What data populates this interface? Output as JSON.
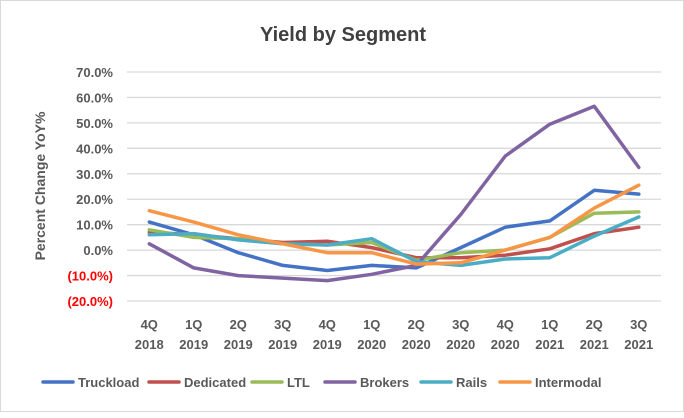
{
  "chart_data": {
    "type": "line",
    "title": "Yield by Segment",
    "xlabel": "",
    "ylabel": "Percent Change YoY%",
    "ylim": [
      -20,
      70
    ],
    "yticks": [
      70,
      60,
      50,
      40,
      30,
      20,
      10,
      0,
      -10,
      -20
    ],
    "ytick_labels": [
      "70.0%",
      "60.0%",
      "50.0%",
      "40.0%",
      "30.0%",
      "20.0%",
      "10.0%",
      "0.0%",
      "(10.0%)",
      "(20.0%)"
    ],
    "negative_label_color": "#ff0000",
    "grid": true,
    "legend_position": "bottom",
    "categories": [
      [
        "4Q",
        "2018"
      ],
      [
        "1Q",
        "2019"
      ],
      [
        "2Q",
        "2019"
      ],
      [
        "3Q",
        "2019"
      ],
      [
        "4Q",
        "2019"
      ],
      [
        "1Q",
        "2020"
      ],
      [
        "2Q",
        "2020"
      ],
      [
        "3Q",
        "2020"
      ],
      [
        "4Q",
        "2020"
      ],
      [
        "1Q",
        "2021"
      ],
      [
        "2Q",
        "2021"
      ],
      [
        "3Q",
        "2021"
      ]
    ],
    "series": [
      {
        "name": "Truckload",
        "color": "#4472c4",
        "values": [
          11,
          6,
          -1,
          -6,
          -8,
          -6,
          -7,
          1,
          9,
          11.5,
          23.5,
          22
        ]
      },
      {
        "name": "Dedicated",
        "color": "#c0504d",
        "values": [
          7,
          6,
          4.5,
          3,
          3.5,
          1,
          -3,
          -3,
          -2,
          0.5,
          6.5,
          9
        ]
      },
      {
        "name": "LTL",
        "color": "#9bbb59",
        "values": [
          8,
          5,
          4.5,
          2.5,
          2,
          3,
          -4,
          -1,
          0,
          5,
          14.5,
          15
        ]
      },
      {
        "name": "Brokers",
        "color": "#8064a2",
        "values": [
          2.5,
          -7,
          -10,
          -11,
          -12,
          -9.5,
          -6,
          14,
          37,
          49.5,
          56.5,
          32.5
        ]
      },
      {
        "name": "Rails",
        "color": "#4bacc6",
        "values": [
          6,
          6.5,
          4,
          2.5,
          2,
          4.5,
          -4.5,
          -6,
          -3.5,
          -3,
          5.5,
          13
        ]
      },
      {
        "name": "Intermodal",
        "color": "#f79646",
        "values": [
          15.5,
          11,
          6,
          2.5,
          -1,
          -1,
          -5.5,
          -5,
          0,
          5,
          16.5,
          25.5
        ]
      }
    ]
  }
}
